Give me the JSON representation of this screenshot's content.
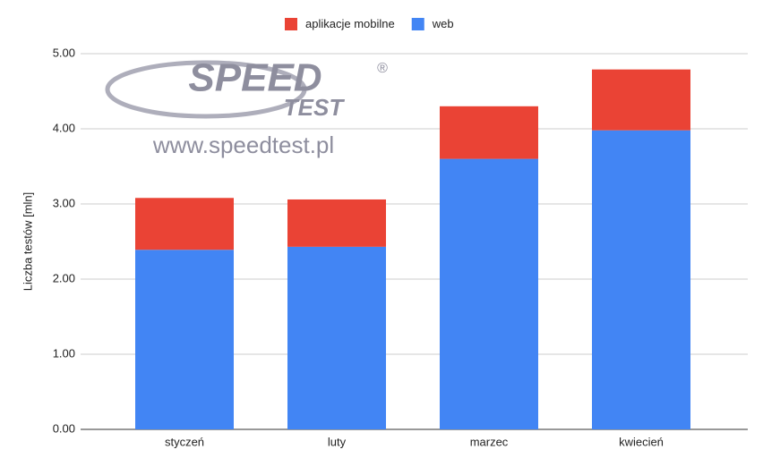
{
  "chart_data": {
    "type": "stacked-bar",
    "y_label": "Liczba testów [mln]",
    "categories": [
      "styczeń",
      "luty",
      "marzec",
      "kwiecień"
    ],
    "series": [
      {
        "name": "aplikacje mobilne",
        "color": "#ea4335",
        "values": [
          0.69,
          0.63,
          0.7,
          0.81
        ]
      },
      {
        "name": "web",
        "color": "#4285f4",
        "values": [
          2.39,
          2.43,
          3.6,
          3.98
        ]
      }
    ],
    "ylim": [
      0,
      5
    ],
    "yticks": [
      {
        "value": 0,
        "label": "0.00"
      },
      {
        "value": 1,
        "label": "1.00"
      },
      {
        "value": 2,
        "label": "2.00"
      },
      {
        "value": 3,
        "label": "3.00"
      },
      {
        "value": 4,
        "label": "4.00"
      },
      {
        "value": 5,
        "label": "5.00"
      }
    ],
    "grid": true,
    "legend": "top",
    "watermark": {
      "logo": "SPEED",
      "logo_sub": "TEST",
      "registered": "®",
      "url": "www.speedtest.pl"
    }
  }
}
